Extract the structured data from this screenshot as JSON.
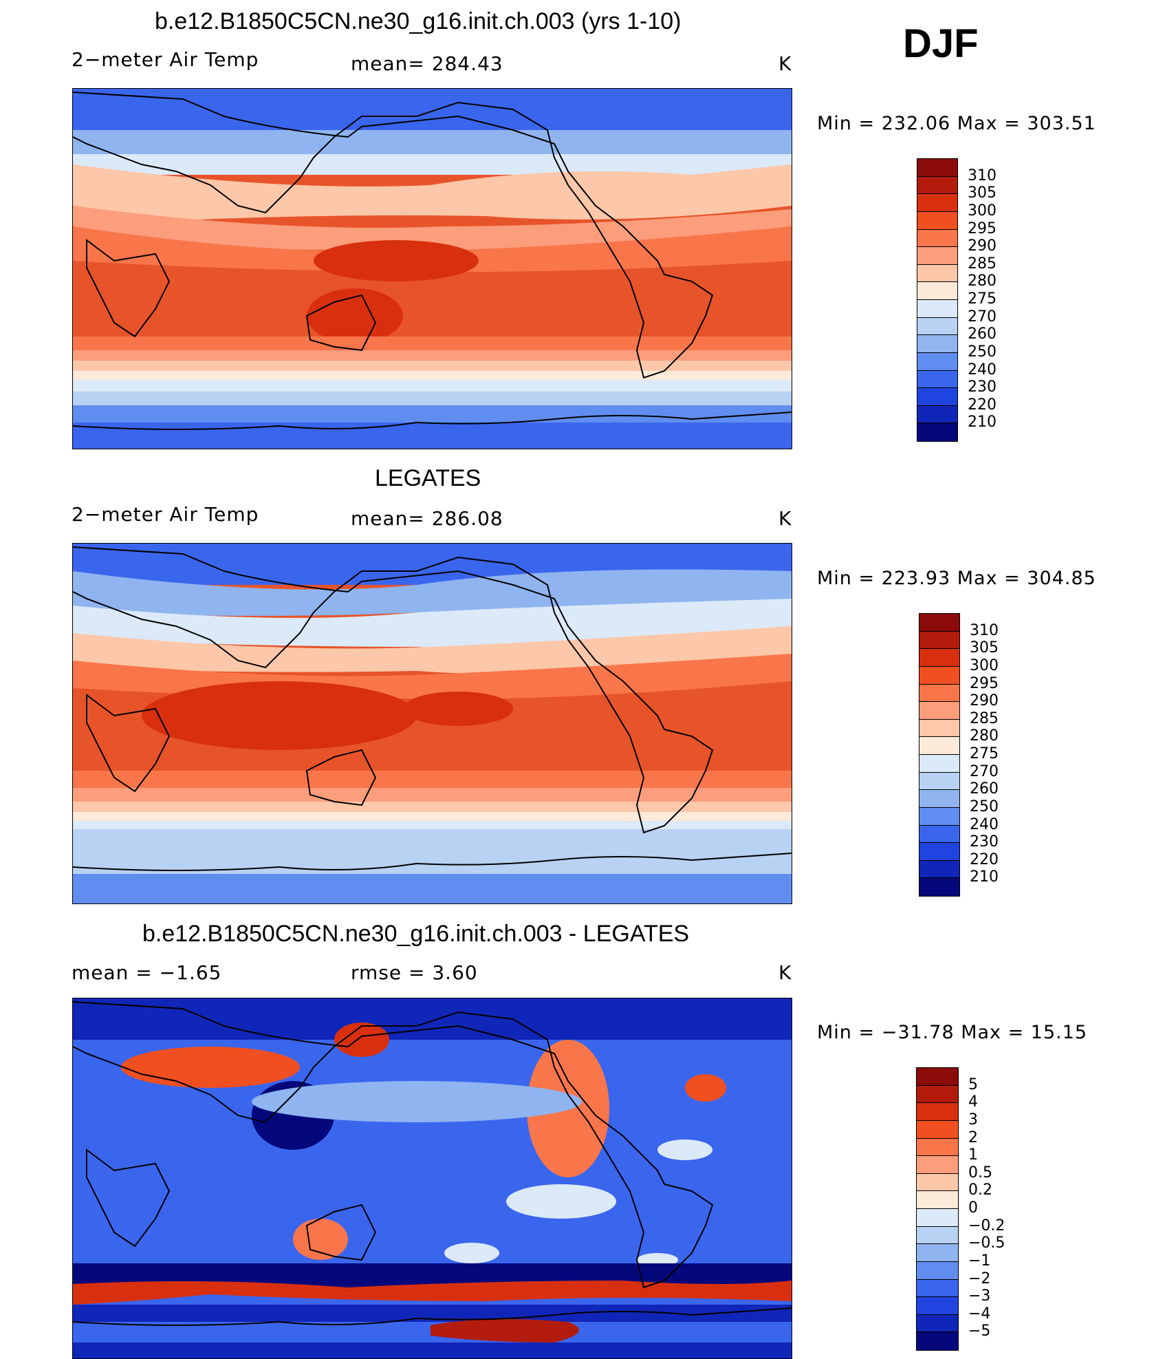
{
  "season": "DJF",
  "panels": [
    {
      "title": "b.e12.B1850C5CN.ne30_g16.init.ch.003 (yrs 1-10)",
      "left_label": "2−meter Air Temp",
      "center_label": "mean=  284.43",
      "units": "K",
      "minmax": "Min  =  232.06  Max  =  303.51",
      "colorbar": {
        "colors": [
          "#8b0a0a",
          "#b31b0c",
          "#d8300f",
          "#f04f20",
          "#f9764a",
          "#fc9d7c",
          "#fdc7a9",
          "#feead9",
          "#dbe9f8",
          "#b8d2f3",
          "#8fb4f0",
          "#5f8ef0",
          "#3a66ee",
          "#1f44e0",
          "#1026b8",
          "#05087a"
        ],
        "labels": [
          "310",
          "305",
          "300",
          "295",
          "290",
          "285",
          "280",
          "275",
          "270",
          "260",
          "250",
          "240",
          "230",
          "220",
          "210"
        ]
      }
    },
    {
      "title": "LEGATES",
      "left_label": "2−meter Air Temp",
      "center_label": "mean=  286.08",
      "units": "K",
      "minmax": "Min  =  223.93  Max  =  304.85",
      "colorbar": {
        "colors": [
          "#8b0a0a",
          "#b31b0c",
          "#d8300f",
          "#f04f20",
          "#f9764a",
          "#fc9d7c",
          "#fdc7a9",
          "#feead9",
          "#dbe9f8",
          "#b8d2f3",
          "#8fb4f0",
          "#5f8ef0",
          "#3a66ee",
          "#1f44e0",
          "#1026b8",
          "#05087a"
        ],
        "labels": [
          "310",
          "305",
          "300",
          "295",
          "290",
          "285",
          "280",
          "275",
          "270",
          "260",
          "250",
          "240",
          "230",
          "220",
          "210"
        ]
      }
    },
    {
      "title": "b.e12.B1850C5CN.ne30_g16.init.ch.003 - LEGATES",
      "left_label": "mean =    −1.65",
      "center_label": "rmse =     3.60",
      "units": "K",
      "minmax": "Min  =  −31.78  Max  =    15.15",
      "colorbar": {
        "colors": [
          "#8b0a0a",
          "#b31b0c",
          "#d8300f",
          "#f04f20",
          "#f9764a",
          "#fc9d7c",
          "#fdc7a9",
          "#feead9",
          "#dbe9f8",
          "#b8d2f3",
          "#8fb4f0",
          "#5f8ef0",
          "#3a66ee",
          "#1f44e0",
          "#1026b8",
          "#05087a"
        ],
        "labels": [
          "5",
          "4",
          "3",
          "2",
          "1",
          "0.5",
          "0.2",
          "0",
          "−0.2",
          "−0.5",
          "−1",
          "−2",
          "−3",
          "−4",
          "−5"
        ]
      }
    }
  ]
}
